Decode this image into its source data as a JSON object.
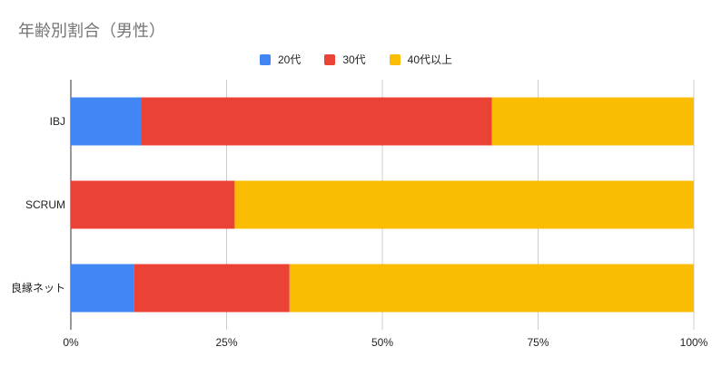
{
  "chart_data": {
    "type": "bar",
    "orientation": "horizontal",
    "stacked": "percent",
    "title": "年齢別割合（男性）",
    "categories": [
      "IBJ",
      "SCRUM",
      "良縁ネット"
    ],
    "series": [
      {
        "name": "20代",
        "color": "#4285f4",
        "values": [
          0.113,
          0.0,
          0.101
        ]
      },
      {
        "name": "30代",
        "color": "#ea4335",
        "values": [
          0.563,
          0.263,
          0.25
        ]
      },
      {
        "name": "40代以上",
        "color": "#fbbc04",
        "values": [
          0.324,
          0.737,
          0.649
        ]
      }
    ],
    "x_ticks": [
      "0%",
      "25%",
      "50%",
      "75%",
      "100%"
    ],
    "xlim": [
      0,
      1
    ],
    "grid": true,
    "legend_position": "top"
  }
}
